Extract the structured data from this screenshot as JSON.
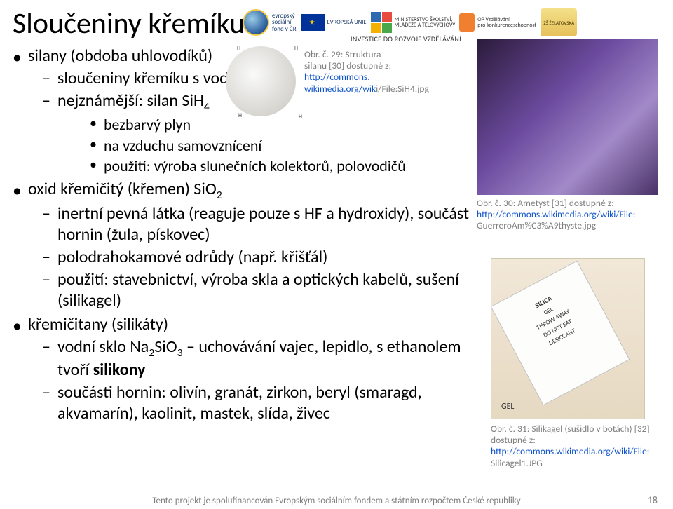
{
  "title": "Sloučeniny křemíku",
  "bullets": {
    "b1": "silany (obdoba uhlovodíků)",
    "b1_1": "sloučeniny křemíku s vodíkem",
    "b1_2a": "nejznámější: silan    SiH",
    "b1_2sub": "4",
    "b1_2_1": "bezbarvý plyn",
    "b1_2_2": "na vzduchu samovznícení",
    "b1_2_3": "použití: výroba slunečních kolektorů, polovodičů",
    "b2a": "oxid křemičitý (křemen)   SiO",
    "b2sub": "2",
    "b2_1": "inertní pevná látka (reaguje pouze s HF a hydroxidy), součást hornin (žula, pískovec)",
    "b2_2": "polodrahokamové odrůdy (např. křišťál)",
    "b2_3": "použití: stavebnictví, výroba skla a optických kabelů, sušení (silikagel)",
    "b3": "křemičitany  (silikáty)",
    "b3_1a": "vodní sklo Na",
    "b3_1sub1": "2",
    "b3_1b": "SiO",
    "b3_1sub2": "3",
    "b3_1c": " – uchovávání vajec, lepidlo, s ethanolem tvoří ",
    "b3_1d": "silikony",
    "b3_2": "součásti hornin: olivín, granát, zirkon, beryl (smaragd, akvamarín), kaolinit, mastek, slída, živec"
  },
  "cap29": {
    "t1": "Obr. č. 29: Struktura silanu [30] dostupné z: ",
    "link1": "http://commons.",
    "link2": "wikimedia.org/wik",
    "t2": "i/File:SiH4.jpg"
  },
  "cap30": {
    "t1": "Obr. č. 30: Ametyst [31] dostupné z: ",
    "link": "http://commons.wikimedia.org/wiki/File:",
    "t2": "GuerreroAm%C3%A9thyste.jpg"
  },
  "cap31": {
    "t1": "Obr. č. 31: Silikagel (sušidlo v botách) [32] dostupné z:",
    "link": "http://commons.wikimedia.org/wiki/File:",
    "t2": "Silicagel1.JPG"
  },
  "silicagel_label": {
    "a": "SILICA",
    "b": "GEL",
    "c": "THROW AWAY",
    "d": "DO NOT EAT",
    "e": "DESICCANT",
    "f": "GEL"
  },
  "logostrip": {
    "esf1": "evropský",
    "esf2": "sociální",
    "esf3": "fond v ČR",
    "eu": "EVROPSKÁ UNIE",
    "msmt1": "MINISTERSTVO ŠKOLSTVÍ,",
    "msmt2": "MLÁDEŽE A TĚLOVÝCHOVY",
    "opvk1": "OP Vzdělávání",
    "opvk2": "pro konkurenceschopnost",
    "zelat": "ZŠ ŽELATOVSKÁ",
    "invest": "INVESTICE DO ROZVOJE VZDĚLÁVÁNÍ"
  },
  "footer": "Tento projekt je spolufinancován Evropským sociálním fondem a státním rozpočtem České republiky",
  "pagenum": "18",
  "colors": {
    "text": "#000000",
    "caption": "#7f7f7f",
    "link": "#1155cc",
    "bg": "#ffffff"
  }
}
